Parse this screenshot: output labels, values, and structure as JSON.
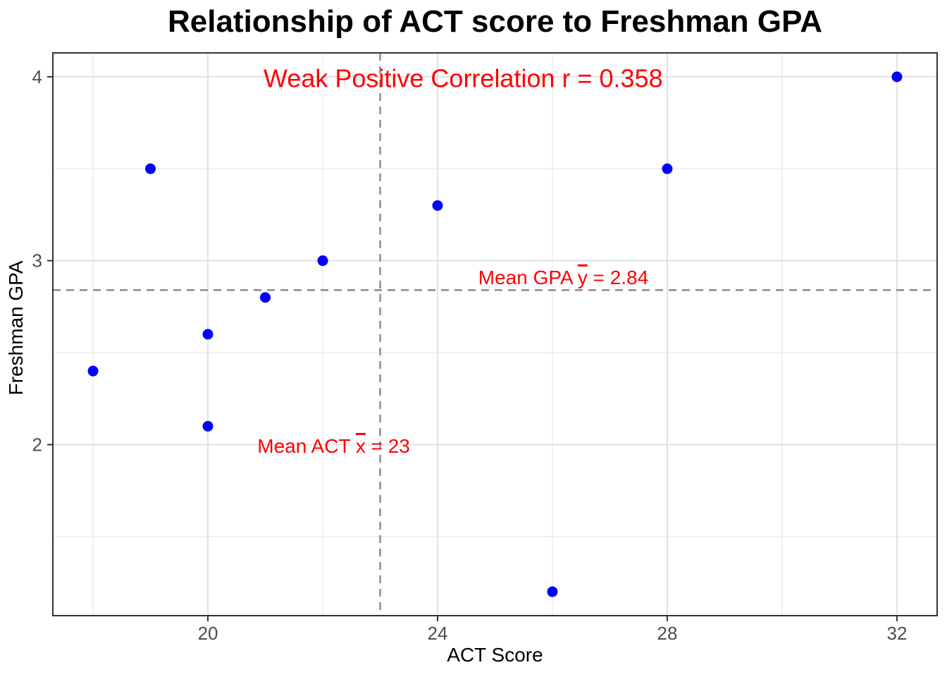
{
  "chart_data": {
    "type": "scatter",
    "title": "Relationship of ACT score to Freshman GPA",
    "xlabel": "ACT Score",
    "ylabel": "Freshman GPA",
    "points": [
      {
        "x": 18,
        "y": 2.4
      },
      {
        "x": 19,
        "y": 3.5
      },
      {
        "x": 20,
        "y": 2.6
      },
      {
        "x": 20,
        "y": 2.1
      },
      {
        "x": 21,
        "y": 2.8
      },
      {
        "x": 22,
        "y": 3.0
      },
      {
        "x": 24,
        "y": 3.3
      },
      {
        "x": 26,
        "y": 1.2
      },
      {
        "x": 28,
        "y": 3.5
      },
      {
        "x": 32,
        "y": 4.0
      }
    ],
    "xlim": [
      17.3,
      32.7
    ],
    "ylim": [
      1.07,
      4.13
    ],
    "x_ticks": {
      "major": [
        20,
        24,
        28,
        32
      ],
      "minor": [
        18,
        22,
        26,
        30
      ]
    },
    "y_ticks": {
      "major": [
        2,
        3,
        4
      ],
      "minor": [
        1.5,
        2.5,
        3.5
      ]
    },
    "grid": true,
    "legend": false,
    "mean_x": 23,
    "mean_y": 2.84,
    "annotations": {
      "correlation": {
        "text": "Weak Positive Correlation r = 0.358",
        "x": 24.2,
        "y": 3.99
      },
      "mean_gpa": {
        "prefix": "Mean GPA ",
        "variable": "y",
        "suffix": " = 2.84",
        "x": 26.0,
        "y": 2.91
      },
      "mean_act": {
        "prefix": "Mean ACT ",
        "variable": "x",
        "suffix": " = 23",
        "x": 22.0,
        "y": 1.99
      }
    },
    "colors": {
      "point": "#0000FF",
      "annotation": "#FF0000",
      "mean_line": "#7F7F7F",
      "grid_major": "#E2E2E2",
      "grid_minor": "#ECECEC",
      "panel_border": "#333333",
      "tick_mark": "#333333",
      "tick_label": "#4D4D4D",
      "title": "#000000"
    }
  }
}
